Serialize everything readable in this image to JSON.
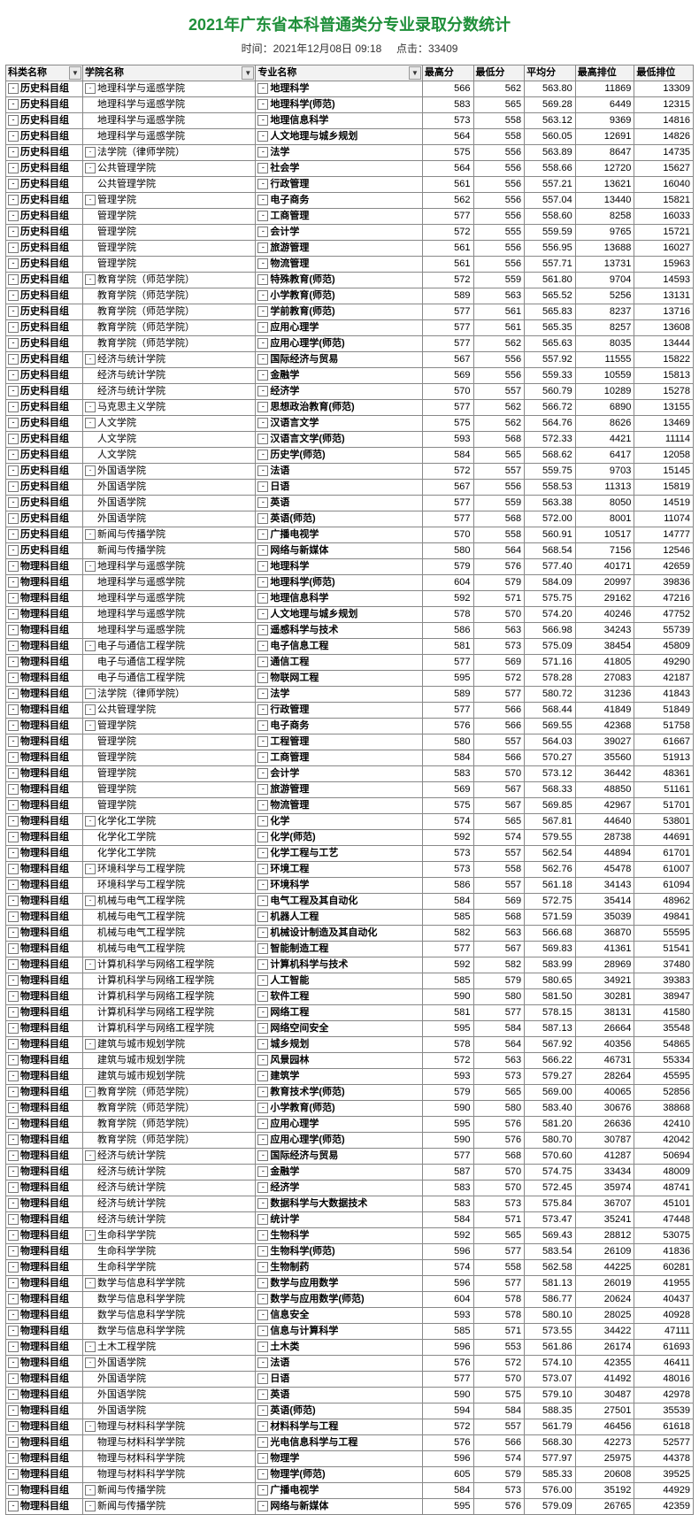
{
  "page_title": "2021年广东省本科普通类分专业录取分数统计",
  "meta_time_label": "时间：",
  "meta_time_value": "2021年12月08日 09:18",
  "meta_hits_label": "点击：",
  "meta_hits_value": "33409",
  "headers": [
    "科类名称",
    "学院名称",
    "专业名称",
    "最高分",
    "最低分",
    "平均分",
    "最高排位",
    "最低排位"
  ],
  "col_widths_class": [
    "col-cat",
    "col-col",
    "col-maj",
    "col-n",
    "col-n",
    "col-n",
    "col-r",
    "col-r"
  ],
  "expand_cols": [
    true,
    true,
    true,
    false,
    false,
    false,
    false,
    false
  ],
  "rows": [
    [
      "历史科目组",
      "地理科学与遥感学院",
      "地理科学",
      "566",
      "562",
      "563.80",
      "11869",
      "13309",
      1,
      1
    ],
    [
      "历史科目组",
      "地理科学与遥感学院",
      "地理科学(师范)",
      "583",
      "565",
      "569.28",
      "6449",
      "12315",
      0,
      1
    ],
    [
      "历史科目组",
      "地理科学与遥感学院",
      "地理信息科学",
      "573",
      "558",
      "563.12",
      "9369",
      "14816",
      0,
      1
    ],
    [
      "历史科目组",
      "地理科学与遥感学院",
      "人文地理与城乡规划",
      "564",
      "558",
      "560.05",
      "12691",
      "14826",
      0,
      1
    ],
    [
      "历史科目组",
      "法学院（律师学院）",
      "法学",
      "575",
      "556",
      "563.89",
      "8647",
      "14735",
      1,
      1
    ],
    [
      "历史科目组",
      "公共管理学院",
      "社会学",
      "564",
      "556",
      "558.66",
      "12720",
      "15627",
      1,
      1
    ],
    [
      "历史科目组",
      "公共管理学院",
      "行政管理",
      "561",
      "556",
      "557.21",
      "13621",
      "16040",
      0,
      1
    ],
    [
      "历史科目组",
      "管理学院",
      "电子商务",
      "562",
      "556",
      "557.04",
      "13440",
      "15821",
      1,
      1
    ],
    [
      "历史科目组",
      "管理学院",
      "工商管理",
      "577",
      "556",
      "558.60",
      "8258",
      "16033",
      0,
      1
    ],
    [
      "历史科目组",
      "管理学院",
      "会计学",
      "572",
      "555",
      "559.59",
      "9765",
      "15721",
      0,
      1
    ],
    [
      "历史科目组",
      "管理学院",
      "旅游管理",
      "561",
      "556",
      "556.95",
      "13688",
      "16027",
      0,
      1
    ],
    [
      "历史科目组",
      "管理学院",
      "物流管理",
      "561",
      "556",
      "557.71",
      "13731",
      "15963",
      0,
      1
    ],
    [
      "历史科目组",
      "教育学院（师范学院）",
      "特殊教育(师范)",
      "572",
      "559",
      "561.80",
      "9704",
      "14593",
      1,
      1
    ],
    [
      "历史科目组",
      "教育学院（师范学院）",
      "小学教育(师范)",
      "589",
      "563",
      "565.52",
      "5256",
      "13131",
      0,
      1
    ],
    [
      "历史科目组",
      "教育学院（师范学院）",
      "学前教育(师范)",
      "577",
      "561",
      "565.83",
      "8237",
      "13716",
      0,
      1
    ],
    [
      "历史科目组",
      "教育学院（师范学院）",
      "应用心理学",
      "577",
      "561",
      "565.35",
      "8257",
      "13608",
      0,
      1
    ],
    [
      "历史科目组",
      "教育学院（师范学院）",
      "应用心理学(师范)",
      "577",
      "562",
      "565.63",
      "8035",
      "13444",
      0,
      1
    ],
    [
      "历史科目组",
      "经济与统计学院",
      "国际经济与贸易",
      "567",
      "556",
      "557.92",
      "11555",
      "15822",
      1,
      1
    ],
    [
      "历史科目组",
      "经济与统计学院",
      "金融学",
      "569",
      "556",
      "559.33",
      "10559",
      "15813",
      0,
      1
    ],
    [
      "历史科目组",
      "经济与统计学院",
      "经济学",
      "570",
      "557",
      "560.79",
      "10289",
      "15278",
      0,
      1
    ],
    [
      "历史科目组",
      "马克思主义学院",
      "思想政治教育(师范)",
      "577",
      "562",
      "566.72",
      "6890",
      "13155",
      1,
      1
    ],
    [
      "历史科目组",
      "人文学院",
      "汉语言文学",
      "575",
      "562",
      "564.76",
      "8626",
      "13469",
      1,
      1
    ],
    [
      "历史科目组",
      "人文学院",
      "汉语言文学(师范)",
      "593",
      "568",
      "572.33",
      "4421",
      "11114",
      0,
      1
    ],
    [
      "历史科目组",
      "人文学院",
      "历史学(师范)",
      "584",
      "565",
      "568.62",
      "6417",
      "12058",
      0,
      1
    ],
    [
      "历史科目组",
      "外国语学院",
      "法语",
      "572",
      "557",
      "559.75",
      "9703",
      "15145",
      1,
      1
    ],
    [
      "历史科目组",
      "外国语学院",
      "日语",
      "567",
      "556",
      "558.53",
      "11313",
      "15819",
      0,
      1
    ],
    [
      "历史科目组",
      "外国语学院",
      "英语",
      "577",
      "559",
      "563.38",
      "8050",
      "14519",
      0,
      1
    ],
    [
      "历史科目组",
      "外国语学院",
      "英语(师范)",
      "577",
      "568",
      "572.00",
      "8001",
      "11074",
      0,
      1
    ],
    [
      "历史科目组",
      "新闻与传播学院",
      "广播电视学",
      "570",
      "558",
      "560.91",
      "10517",
      "14777",
      1,
      1
    ],
    [
      "历史科目组",
      "新闻与传播学院",
      "网络与新媒体",
      "580",
      "564",
      "568.54",
      "7156",
      "12546",
      0,
      1
    ],
    [
      "物理科目组",
      "地理科学与遥感学院",
      "地理科学",
      "579",
      "576",
      "577.40",
      "40171",
      "42659",
      1,
      1
    ],
    [
      "物理科目组",
      "地理科学与遥感学院",
      "地理科学(师范)",
      "604",
      "579",
      "584.09",
      "20997",
      "39836",
      0,
      1
    ],
    [
      "物理科目组",
      "地理科学与遥感学院",
      "地理信息科学",
      "592",
      "571",
      "575.75",
      "29162",
      "47216",
      0,
      1
    ],
    [
      "物理科目组",
      "地理科学与遥感学院",
      "人文地理与城乡规划",
      "578",
      "570",
      "574.20",
      "40246",
      "47752",
      0,
      1
    ],
    [
      "物理科目组",
      "地理科学与遥感学院",
      "遥感科学与技术",
      "586",
      "563",
      "566.98",
      "34243",
      "55739",
      0,
      1
    ],
    [
      "物理科目组",
      "电子与通信工程学院",
      "电子信息工程",
      "581",
      "573",
      "575.09",
      "38454",
      "45809",
      1,
      1
    ],
    [
      "物理科目组",
      "电子与通信工程学院",
      "通信工程",
      "577",
      "569",
      "571.16",
      "41805",
      "49290",
      0,
      1
    ],
    [
      "物理科目组",
      "电子与通信工程学院",
      "物联网工程",
      "595",
      "572",
      "578.28",
      "27083",
      "42187",
      0,
      1
    ],
    [
      "物理科目组",
      "法学院（律师学院）",
      "法学",
      "589",
      "577",
      "580.72",
      "31236",
      "41843",
      1,
      1
    ],
    [
      "物理科目组",
      "公共管理学院",
      "行政管理",
      "577",
      "566",
      "568.44",
      "41849",
      "51849",
      1,
      1
    ],
    [
      "物理科目组",
      "管理学院",
      "电子商务",
      "576",
      "566",
      "569.55",
      "42368",
      "51758",
      1,
      1
    ],
    [
      "物理科目组",
      "管理学院",
      "工程管理",
      "580",
      "557",
      "564.03",
      "39027",
      "61667",
      0,
      1
    ],
    [
      "物理科目组",
      "管理学院",
      "工商管理",
      "584",
      "566",
      "570.27",
      "35560",
      "51913",
      0,
      1
    ],
    [
      "物理科目组",
      "管理学院",
      "会计学",
      "583",
      "570",
      "573.12",
      "36442",
      "48361",
      0,
      1
    ],
    [
      "物理科目组",
      "管理学院",
      "旅游管理",
      "569",
      "567",
      "568.33",
      "48850",
      "51161",
      0,
      1
    ],
    [
      "物理科目组",
      "管理学院",
      "物流管理",
      "575",
      "567",
      "569.85",
      "42967",
      "51701",
      0,
      1
    ],
    [
      "物理科目组",
      "化学化工学院",
      "化学",
      "574",
      "565",
      "567.81",
      "44640",
      "53801",
      1,
      1
    ],
    [
      "物理科目组",
      "化学化工学院",
      "化学(师范)",
      "592",
      "574",
      "579.55",
      "28738",
      "44691",
      0,
      1
    ],
    [
      "物理科目组",
      "化学化工学院",
      "化学工程与工艺",
      "573",
      "557",
      "562.54",
      "44894",
      "61701",
      0,
      1
    ],
    [
      "物理科目组",
      "环境科学与工程学院",
      "环境工程",
      "573",
      "558",
      "562.76",
      "45478",
      "61007",
      1,
      1
    ],
    [
      "物理科目组",
      "环境科学与工程学院",
      "环境科学",
      "586",
      "557",
      "561.18",
      "34143",
      "61094",
      0,
      1
    ],
    [
      "物理科目组",
      "机械与电气工程学院",
      "电气工程及其自动化",
      "584",
      "569",
      "572.75",
      "35414",
      "48962",
      1,
      1
    ],
    [
      "物理科目组",
      "机械与电气工程学院",
      "机器人工程",
      "585",
      "568",
      "571.59",
      "35039",
      "49841",
      0,
      1
    ],
    [
      "物理科目组",
      "机械与电气工程学院",
      "机械设计制造及其自动化",
      "582",
      "563",
      "566.68",
      "36870",
      "55595",
      0,
      1
    ],
    [
      "物理科目组",
      "机械与电气工程学院",
      "智能制造工程",
      "577",
      "567",
      "569.83",
      "41361",
      "51541",
      0,
      1
    ],
    [
      "物理科目组",
      "计算机科学与网络工程学院",
      "计算机科学与技术",
      "592",
      "582",
      "583.99",
      "28969",
      "37480",
      1,
      1
    ],
    [
      "物理科目组",
      "计算机科学与网络工程学院",
      "人工智能",
      "585",
      "579",
      "580.65",
      "34921",
      "39383",
      0,
      1
    ],
    [
      "物理科目组",
      "计算机科学与网络工程学院",
      "软件工程",
      "590",
      "580",
      "581.50",
      "30281",
      "38947",
      0,
      1
    ],
    [
      "物理科目组",
      "计算机科学与网络工程学院",
      "网络工程",
      "581",
      "577",
      "578.15",
      "38131",
      "41580",
      0,
      1
    ],
    [
      "物理科目组",
      "计算机科学与网络工程学院",
      "网络空间安全",
      "595",
      "584",
      "587.13",
      "26664",
      "35548",
      0,
      1
    ],
    [
      "物理科目组",
      "建筑与城市规划学院",
      "城乡规划",
      "578",
      "564",
      "567.92",
      "40356",
      "54865",
      1,
      1
    ],
    [
      "物理科目组",
      "建筑与城市规划学院",
      "风景园林",
      "572",
      "563",
      "566.22",
      "46731",
      "55334",
      0,
      1
    ],
    [
      "物理科目组",
      "建筑与城市规划学院",
      "建筑学",
      "593",
      "573",
      "579.27",
      "28264",
      "45595",
      0,
      1
    ],
    [
      "物理科目组",
      "教育学院（师范学院）",
      "教育技术学(师范)",
      "579",
      "565",
      "569.00",
      "40065",
      "52856",
      1,
      1
    ],
    [
      "物理科目组",
      "教育学院（师范学院）",
      "小学教育(师范)",
      "590",
      "580",
      "583.40",
      "30676",
      "38868",
      0,
      1
    ],
    [
      "物理科目组",
      "教育学院（师范学院）",
      "应用心理学",
      "595",
      "576",
      "581.20",
      "26636",
      "42410",
      0,
      1
    ],
    [
      "物理科目组",
      "教育学院（师范学院）",
      "应用心理学(师范)",
      "590",
      "576",
      "580.70",
      "30787",
      "42042",
      0,
      1
    ],
    [
      "物理科目组",
      "经济与统计学院",
      "国际经济与贸易",
      "577",
      "568",
      "570.60",
      "41287",
      "50694",
      1,
      1
    ],
    [
      "物理科目组",
      "经济与统计学院",
      "金融学",
      "587",
      "570",
      "574.75",
      "33434",
      "48009",
      0,
      1
    ],
    [
      "物理科目组",
      "经济与统计学院",
      "经济学",
      "583",
      "570",
      "572.45",
      "35974",
      "48741",
      0,
      1
    ],
    [
      "物理科目组",
      "经济与统计学院",
      "数据科学与大数据技术",
      "583",
      "573",
      "575.84",
      "36707",
      "45101",
      0,
      1
    ],
    [
      "物理科目组",
      "经济与统计学院",
      "统计学",
      "584",
      "571",
      "573.47",
      "35241",
      "47448",
      0,
      1
    ],
    [
      "物理科目组",
      "生命科学学院",
      "生物科学",
      "592",
      "565",
      "569.43",
      "28812",
      "53075",
      1,
      1
    ],
    [
      "物理科目组",
      "生命科学学院",
      "生物科学(师范)",
      "596",
      "577",
      "583.54",
      "26109",
      "41836",
      0,
      1
    ],
    [
      "物理科目组",
      "生命科学学院",
      "生物制药",
      "574",
      "558",
      "562.58",
      "44225",
      "60281",
      0,
      1
    ],
    [
      "物理科目组",
      "数学与信息科学学院",
      "数学与应用数学",
      "596",
      "577",
      "581.13",
      "26019",
      "41955",
      1,
      1
    ],
    [
      "物理科目组",
      "数学与信息科学学院",
      "数学与应用数学(师范)",
      "604",
      "578",
      "586.77",
      "20624",
      "40437",
      0,
      1
    ],
    [
      "物理科目组",
      "数学与信息科学学院",
      "信息安全",
      "593",
      "578",
      "580.10",
      "28025",
      "40928",
      0,
      1
    ],
    [
      "物理科目组",
      "数学与信息科学学院",
      "信息与计算科学",
      "585",
      "571",
      "573.55",
      "34422",
      "47111",
      0,
      1
    ],
    [
      "物理科目组",
      "土木工程学院",
      "土木类",
      "596",
      "553",
      "561.86",
      "26174",
      "61693",
      1,
      1
    ],
    [
      "物理科目组",
      "外国语学院",
      "法语",
      "576",
      "572",
      "574.10",
      "42355",
      "46411",
      1,
      1
    ],
    [
      "物理科目组",
      "外国语学院",
      "日语",
      "577",
      "570",
      "573.07",
      "41492",
      "48016",
      0,
      1
    ],
    [
      "物理科目组",
      "外国语学院",
      "英语",
      "590",
      "575",
      "579.10",
      "30487",
      "42978",
      0,
      1
    ],
    [
      "物理科目组",
      "外国语学院",
      "英语(师范)",
      "594",
      "584",
      "588.35",
      "27501",
      "35539",
      0,
      1
    ],
    [
      "物理科目组",
      "物理与材料科学学院",
      "材料科学与工程",
      "572",
      "557",
      "561.79",
      "46456",
      "61618",
      1,
      1
    ],
    [
      "物理科目组",
      "物理与材料科学学院",
      "光电信息科学与工程",
      "576",
      "566",
      "568.30",
      "42273",
      "52577",
      0,
      1
    ],
    [
      "物理科目组",
      "物理与材料科学学院",
      "物理学",
      "596",
      "574",
      "577.97",
      "25975",
      "44378",
      0,
      1
    ],
    [
      "物理科目组",
      "物理与材料科学学院",
      "物理学(师范)",
      "605",
      "579",
      "585.33",
      "20608",
      "39525",
      0,
      1
    ],
    [
      "物理科目组",
      "新闻与传播学院",
      "广播电视学",
      "584",
      "573",
      "576.00",
      "35192",
      "44929",
      1,
      1
    ],
    [
      "物理科目组",
      "新闻与传播学院",
      "网络与新媒体",
      "595",
      "576",
      "579.09",
      "26765",
      "42359",
      1,
      1
    ]
  ]
}
